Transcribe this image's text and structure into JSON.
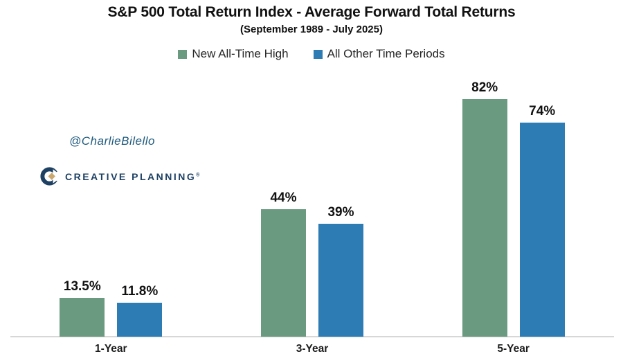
{
  "title": "S&P 500 Total Return Index - Average Forward Total Returns",
  "subtitle": "(September 1989 - July 2025)",
  "watermark": "@CharlieBilello",
  "logo": {
    "text": "CREATIVE PLANNING",
    "trademark": "®",
    "navy": "#1d4063",
    "gold": "#c9a76d"
  },
  "legend": {
    "items": [
      {
        "label": "New All-Time High",
        "color": "#6a9a80"
      },
      {
        "label": "All Other Time Periods",
        "color": "#2d7cb4"
      }
    ]
  },
  "colors": {
    "green_series": "#6a9a80",
    "blue_series": "#2d7cb4",
    "axis_line": "#d7d7d7",
    "text": "#111111",
    "watermark_teal": "#1e5a7d",
    "background": "#ffffff"
  },
  "chart_data": {
    "type": "bar",
    "title": "S&P 500 Total Return Index - Average Forward Total Returns",
    "subtitle": "(September 1989 - July 2025)",
    "categories": [
      "1-Year",
      "3-Year",
      "5-Year"
    ],
    "series": [
      {
        "name": "New All-Time High",
        "color": "#6a9a80",
        "values": [
          13.5,
          44,
          82
        ],
        "labels": [
          "13.5%",
          "44%",
          "82%"
        ]
      },
      {
        "name": "All Other Time Periods",
        "color": "#2d7cb4",
        "values": [
          11.8,
          39,
          74
        ],
        "labels": [
          "11.8%",
          "39%",
          "74%"
        ]
      }
    ],
    "xlabel": "",
    "ylabel": "",
    "ylim": [
      0,
      88
    ],
    "grid": false,
    "y_axis_shown": false,
    "legend_position": "top",
    "value_labels_shown": true
  }
}
